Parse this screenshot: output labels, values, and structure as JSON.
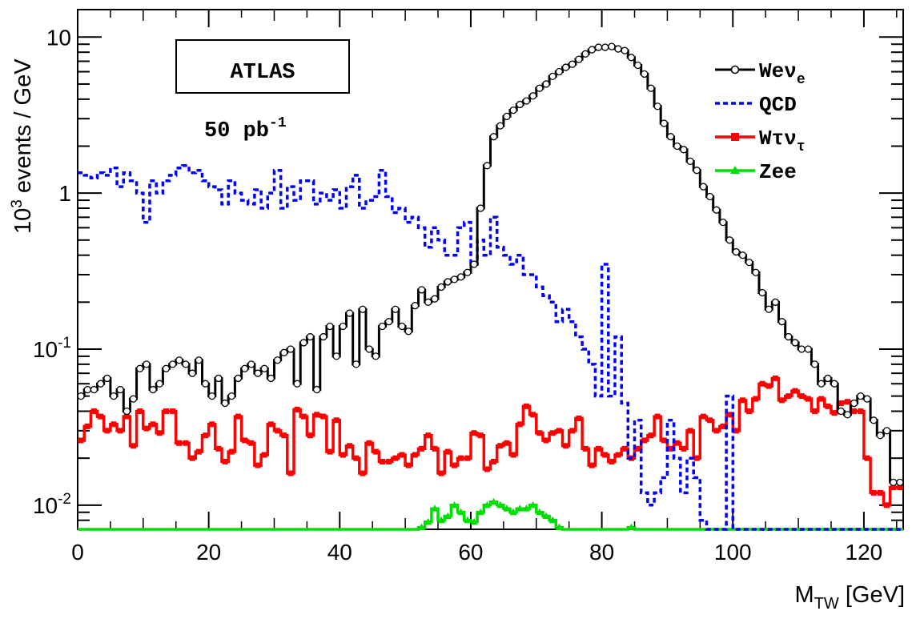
{
  "chart_data": {
    "type": "line",
    "style": "step-histogram",
    "ylabel_prefix": "10",
    "ylabel_exp": "3",
    "ylabel_suffix": " events / GeV",
    "xlabel_main": "M",
    "xlabel_sub": "TW",
    "xlabel_unit": " [GeV]",
    "xlim": [
      0,
      126
    ],
    "ylim": [
      0.007,
      15
    ],
    "yscale": "log",
    "grid": false,
    "x_ticks": [
      "0",
      "20",
      "40",
      "60",
      "80",
      "100",
      "120"
    ],
    "y_ticks": [
      {
        "base": "10",
        "exp": "-2",
        "value": 0.01
      },
      {
        "base": "10",
        "exp": "-1",
        "value": 0.1
      },
      {
        "base": "1",
        "exp": "",
        "value": 1
      },
      {
        "base": "10",
        "exp": "",
        "value": 10
      }
    ],
    "annotations": {
      "experiment": "ATLAS",
      "lumi_value": "50 pb",
      "lumi_exp": "-1"
    },
    "bin_width": 1,
    "legend_position": "top-right",
    "colors": {
      "wenu": "#000000",
      "qcd": "#0000ff",
      "wtaunu": "#ff0000",
      "zee": "#00dd00"
    },
    "series": [
      {
        "name": "Weν_e",
        "key": "wenu",
        "legend_main": "Weν",
        "legend_sub": "e",
        "values": [
          0.05,
          0.055,
          0.055,
          0.06,
          0.065,
          0.05,
          0.055,
          0.04,
          0.048,
          0.075,
          0.08,
          0.055,
          0.06,
          0.075,
          0.08,
          0.085,
          0.08,
          0.07,
          0.085,
          0.06,
          0.05,
          0.065,
          0.045,
          0.05,
          0.065,
          0.075,
          0.08,
          0.07,
          0.075,
          0.065,
          0.085,
          0.095,
          0.1,
          0.06,
          0.11,
          0.12,
          0.055,
          0.12,
          0.14,
          0.09,
          0.14,
          0.17,
          0.08,
          0.18,
          0.1,
          0.09,
          0.14,
          0.15,
          0.18,
          0.14,
          0.13,
          0.19,
          0.24,
          0.2,
          0.21,
          0.25,
          0.27,
          0.28,
          0.29,
          0.31,
          0.35,
          0.8,
          1.5,
          2.3,
          2.7,
          3.1,
          3.4,
          3.7,
          3.9,
          4.2,
          4.7,
          5.0,
          5.6,
          6.0,
          6.4,
          6.7,
          7.2,
          7.8,
          8.3,
          8.6,
          8.6,
          8.7,
          8.4,
          8.2,
          7.4,
          6.6,
          5.8,
          4.7,
          3.6,
          2.8,
          2.3,
          2.0,
          1.9,
          1.6,
          1.4,
          1.1,
          0.95,
          0.78,
          0.65,
          0.5,
          0.42,
          0.4,
          0.36,
          0.31,
          0.23,
          0.18,
          0.2,
          0.15,
          0.12,
          0.11,
          0.1,
          0.1,
          0.08,
          0.06,
          0.065,
          0.06,
          0.04,
          0.038,
          0.045,
          0.05,
          0.048,
          0.035,
          0.028,
          0.03,
          0.014,
          0.014
        ]
      },
      {
        "name": "QCD",
        "key": "qcd",
        "legend_main": "QCD",
        "legend_sub": "",
        "values": [
          1.35,
          1.3,
          1.25,
          1.35,
          1.3,
          1.45,
          1.1,
          1.35,
          1.2,
          1.0,
          0.65,
          1.2,
          1.0,
          1.2,
          1.3,
          1.45,
          1.5,
          1.35,
          1.4,
          1.2,
          1.1,
          1.05,
          0.85,
          1.2,
          1.0,
          0.9,
          0.85,
          1.05,
          0.8,
          1.0,
          1.4,
          0.8,
          1.1,
          0.9,
          1.2,
          1.2,
          0.85,
          1.0,
          0.9,
          1.05,
          0.8,
          1.1,
          1.3,
          0.8,
          0.9,
          0.95,
          1.4,
          0.95,
          0.75,
          0.8,
          0.65,
          0.7,
          0.6,
          0.45,
          0.6,
          0.5,
          0.4,
          0.4,
          0.6,
          0.65,
          0.35,
          0.5,
          0.4,
          0.7,
          0.45,
          0.4,
          0.35,
          0.4,
          0.3,
          0.3,
          0.25,
          0.22,
          0.2,
          0.15,
          0.18,
          0.15,
          0.12,
          0.1,
          0.08,
          0.05,
          0.35,
          0.05,
          0.12,
          0.045,
          0.02,
          0.035,
          0.012,
          0.01,
          0.012,
          0.015,
          0.035,
          0.02,
          0.012,
          0.02,
          0.015,
          0.008,
          0.007,
          0.007,
          0.007,
          0.05,
          0.007,
          0.007,
          0.007,
          0.007,
          0.007,
          0.007,
          0.007,
          0.007,
          0.007,
          0.007,
          0.007,
          0.007,
          0.007,
          0.007,
          0.007,
          0.007,
          0.007,
          0.007,
          0.007,
          0.007,
          0.007,
          0.007,
          0.007,
          0.007,
          0.007,
          0.007
        ]
      },
      {
        "name": "Wτν_τ",
        "key": "wtaunu",
        "legend_main": "Wτν",
        "legend_sub": "τ",
        "values": [
          0.026,
          0.032,
          0.04,
          0.037,
          0.03,
          0.033,
          0.03,
          0.037,
          0.024,
          0.04,
          0.031,
          0.033,
          0.029,
          0.04,
          0.04,
          0.025,
          0.025,
          0.02,
          0.022,
          0.028,
          0.033,
          0.023,
          0.019,
          0.022,
          0.037,
          0.026,
          0.025,
          0.018,
          0.021,
          0.033,
          0.03,
          0.028,
          0.016,
          0.041,
          0.037,
          0.028,
          0.038,
          0.037,
          0.022,
          0.035,
          0.021,
          0.024,
          0.02,
          0.016,
          0.025,
          0.022,
          0.019,
          0.019,
          0.02,
          0.021,
          0.018,
          0.021,
          0.023,
          0.028,
          0.023,
          0.016,
          0.022,
          0.018,
          0.02,
          0.02,
          0.029,
          0.028,
          0.017,
          0.019,
          0.024,
          0.025,
          0.021,
          0.033,
          0.043,
          0.038,
          0.029,
          0.026,
          0.029,
          0.03,
          0.024,
          0.03,
          0.036,
          0.023,
          0.018,
          0.023,
          0.021,
          0.019,
          0.021,
          0.023,
          0.02,
          0.023,
          0.026,
          0.028,
          0.037,
          0.026,
          0.023,
          0.025,
          0.023,
          0.03,
          0.02,
          0.037,
          0.035,
          0.03,
          0.032,
          0.038,
          0.03,
          0.047,
          0.04,
          0.048,
          0.06,
          0.058,
          0.065,
          0.047,
          0.05,
          0.054,
          0.05,
          0.048,
          0.04,
          0.048,
          0.043,
          0.039,
          0.045,
          0.046,
          0.04,
          0.04,
          0.02,
          0.012,
          0.012,
          0.01,
          0.013,
          0.013
        ]
      },
      {
        "name": "Zee",
        "key": "zee",
        "legend_main": "Zee",
        "legend_sub": "",
        "values": [
          0.007,
          0.007,
          0.007,
          0.007,
          0.007,
          0.007,
          0.007,
          0.007,
          0.007,
          0.007,
          0.007,
          0.007,
          0.007,
          0.007,
          0.007,
          0.007,
          0.007,
          0.007,
          0.007,
          0.007,
          0.007,
          0.007,
          0.007,
          0.007,
          0.007,
          0.007,
          0.007,
          0.007,
          0.007,
          0.007,
          0.007,
          0.007,
          0.007,
          0.007,
          0.007,
          0.007,
          0.007,
          0.007,
          0.007,
          0.007,
          0.007,
          0.007,
          0.007,
          0.007,
          0.007,
          0.007,
          0.007,
          0.007,
          0.007,
          0.007,
          0.007,
          0.007,
          0.0072,
          0.0078,
          0.0095,
          0.008,
          0.0085,
          0.01,
          0.009,
          0.008,
          0.0078,
          0.009,
          0.01,
          0.0105,
          0.01,
          0.0095,
          0.009,
          0.0095,
          0.0095,
          0.01,
          0.009,
          0.0085,
          0.008,
          0.0072,
          0.007,
          0.007,
          0.007,
          0.007,
          0.007,
          0.007,
          0.007,
          0.007,
          0.007,
          0.007,
          0.0072,
          0.007,
          0.007,
          0.007,
          0.007,
          0.007,
          0.007,
          0.007,
          0.007,
          0.007,
          0.007,
          0.007,
          0.007,
          0.007,
          0.007,
          0.007,
          0.007,
          0.007,
          0.007,
          0.007,
          0.007,
          0.007,
          0.007,
          0.007,
          0.007,
          0.007,
          0.007,
          0.007,
          0.007,
          0.007,
          0.007,
          0.007,
          0.007,
          0.007,
          0.007,
          0.007,
          0.007,
          0.007,
          0.007,
          0.007,
          0.007,
          0.007
        ]
      }
    ]
  }
}
